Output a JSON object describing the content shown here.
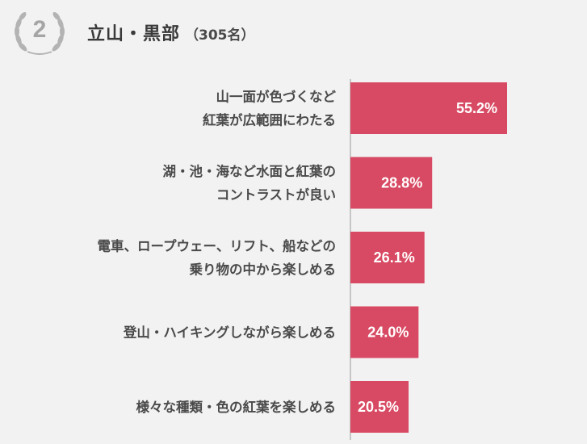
{
  "header": {
    "rank": "2",
    "title": "立山・黒部",
    "sample": "（305名）"
  },
  "colors": {
    "bar": "#d84a63",
    "background": "#f2f2f2",
    "axis": "#9a9a9a",
    "badge": "#a5a5a5"
  },
  "chart_data": {
    "type": "bar",
    "orientation": "horizontal",
    "categories": [
      [
        "山一面が色づくなど",
        "紅葉が広範囲にわたる"
      ],
      [
        "湖・池・海など水面と紅葉の",
        "コントラストが良い"
      ],
      [
        "電車、ロープウェー、リフト、船などの",
        "乗り物の中から楽しめる"
      ],
      [
        "登山・ハイキングしながら楽しめる"
      ],
      [
        "様々な種類・色の紅葉を楽しめる"
      ]
    ],
    "values": [
      55.2,
      28.8,
      26.1,
      24.0,
      20.5
    ],
    "value_labels": [
      "55.2%",
      "28.8%",
      "26.1%",
      "24.0%",
      "20.5%"
    ],
    "unit": "%",
    "grid": false,
    "legend": "none"
  }
}
